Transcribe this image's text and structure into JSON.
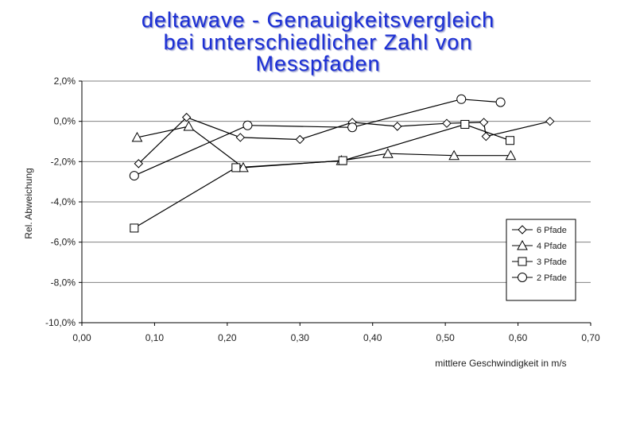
{
  "title_lines": [
    "deltawave - Genauigkeitsvergleich",
    "bei unterschiedlicher Zahl von",
    "Messpfaden"
  ],
  "chart_data": {
    "type": "line",
    "title": "deltawave - Genauigkeitsvergleich bei unterschiedlicher Zahl von Messpfaden",
    "xlabel": "mittlere Geschwindigkeit in m/s",
    "ylabel": "Rel. Abweichung",
    "xlim": [
      0.0,
      0.7
    ],
    "ylim": [
      -10.0,
      2.0
    ],
    "x_ticks": [
      0.0,
      0.1,
      0.2,
      0.3,
      0.4,
      0.5,
      0.6,
      0.7
    ],
    "x_tick_labels": [
      "0,00",
      "0,10",
      "0,20",
      "0,30",
      "0,40",
      "0,50",
      "0,60",
      "0,70"
    ],
    "y_ticks": [
      2.0,
      0.0,
      -2.0,
      -4.0,
      -6.0,
      -8.0,
      -10.0
    ],
    "y_tick_labels": [
      "2,0%",
      "0,0%",
      "-2,0%",
      "-4,0%",
      "-6,0%",
      "-8,0%",
      "-10,0%"
    ],
    "grid": "horizontal",
    "legend_position": "bottom-right",
    "series": [
      {
        "name": "6 Pfade",
        "marker": "diamond",
        "x": [
          0.078,
          0.144,
          0.218,
          0.3,
          0.372,
          0.434,
          0.502,
          0.553,
          0.556,
          0.644
        ],
        "y": [
          -2.1,
          0.2,
          -0.8,
          -0.9,
          -0.05,
          -0.25,
          -0.1,
          -0.05,
          -0.75,
          0.0
        ]
      },
      {
        "name": "4 Pfade",
        "marker": "triangle",
        "x": [
          0.076,
          0.147,
          0.222,
          0.357,
          0.421,
          0.512,
          0.59
        ],
        "y": [
          -0.8,
          -0.25,
          -2.3,
          -1.95,
          -1.6,
          -1.7,
          -1.7
        ]
      },
      {
        "name": "3 Pfade",
        "marker": "square",
        "x": [
          0.072,
          0.212,
          0.359,
          0.527,
          0.589
        ],
        "y": [
          -5.3,
          -2.3,
          -1.95,
          -0.15,
          -0.95
        ]
      },
      {
        "name": "2 Pfade",
        "marker": "circle",
        "x": [
          0.072,
          0.228,
          0.372,
          0.522,
          0.576
        ],
        "y": [
          -2.7,
          -0.2,
          -0.3,
          1.1,
          0.95
        ]
      }
    ]
  }
}
